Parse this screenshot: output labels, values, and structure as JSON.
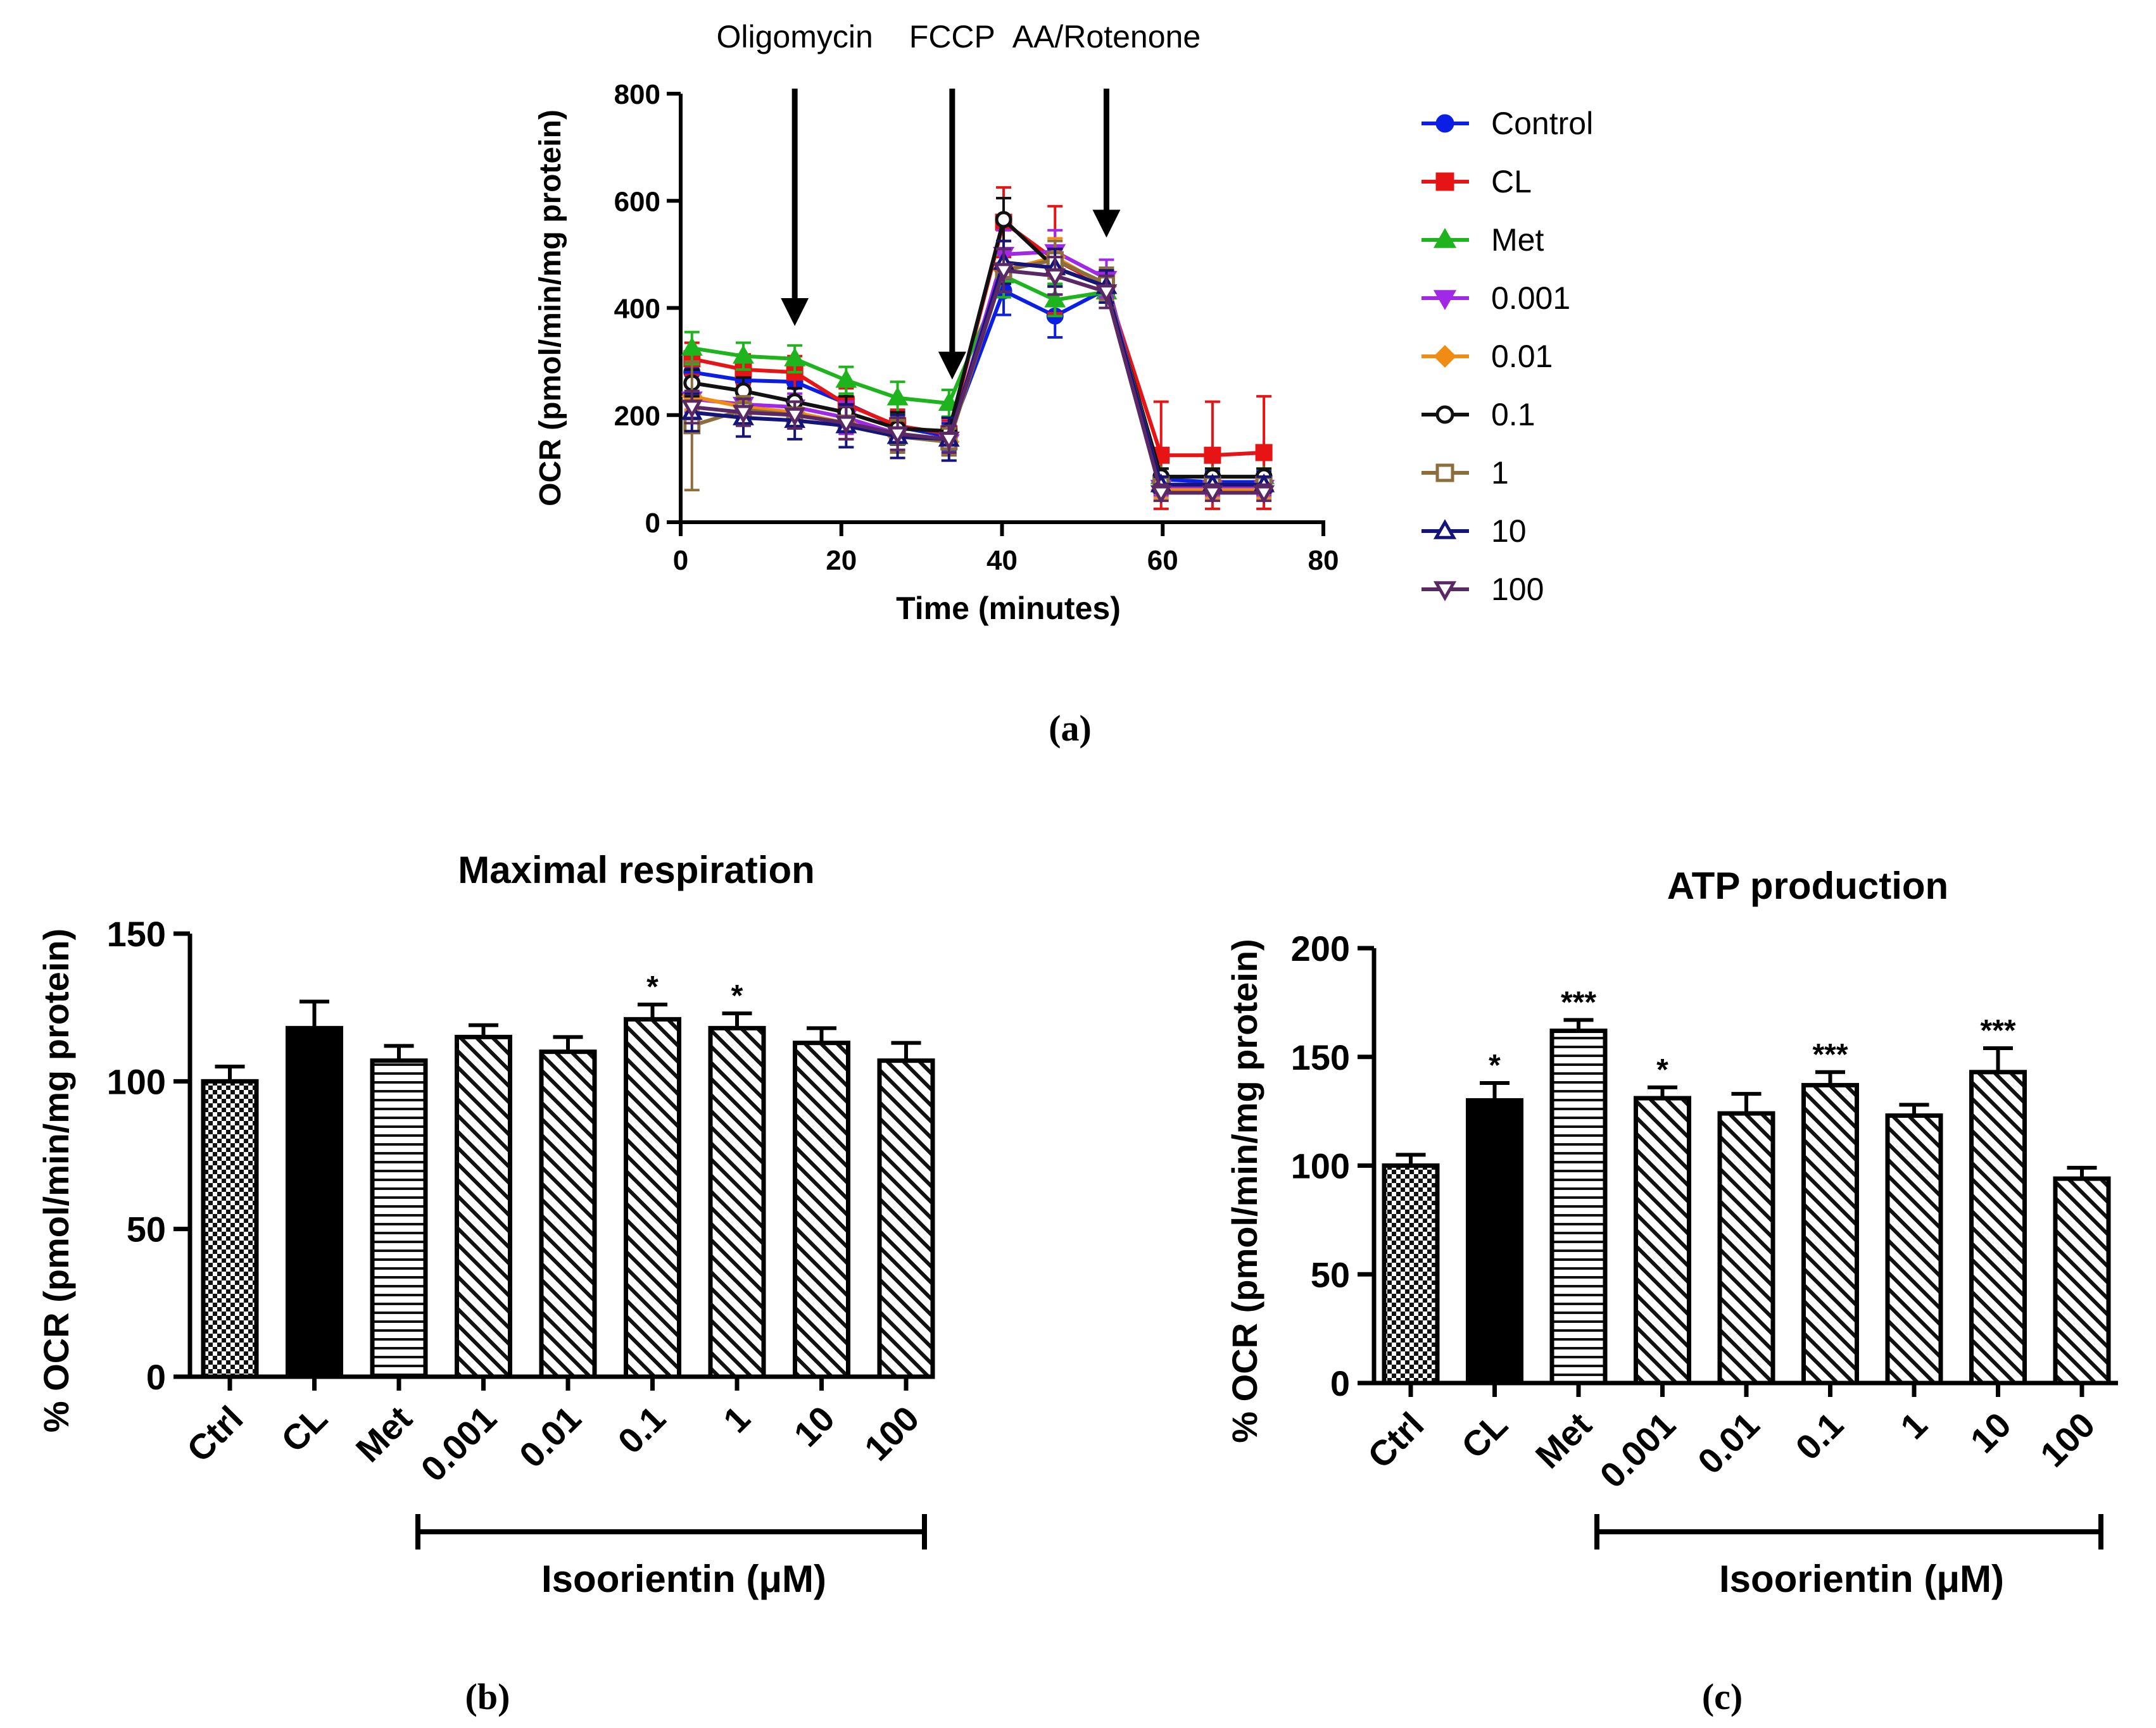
{
  "panel_labels": {
    "a": "(a)",
    "b": "(b)",
    "c": "(c)"
  },
  "chart_data": [
    {
      "id": "a",
      "type": "line",
      "xlabel": "Time (minutes)",
      "ylabel": "OCR (pmol/min/mg protein)",
      "xlim": [
        0,
        80
      ],
      "ylim": [
        0,
        800
      ],
      "xticks": [
        "0",
        "20",
        "40",
        "60",
        "80"
      ],
      "yticks": [
        "0",
        "200",
        "400",
        "600",
        "800"
      ],
      "x": [
        1.4,
        7.8,
        14.2,
        20.6,
        27.0,
        33.4,
        40.2,
        46.6,
        53.0,
        59.8,
        66.2,
        72.6
      ],
      "annotations": [
        {
          "label": "Oligomycin",
          "x": 14.2,
          "y": 345
        },
        {
          "label": "FCCP",
          "x": 33.8,
          "y": 245
        },
        {
          "label": "AA/Rotenone",
          "x": 53.0,
          "y": 510
        }
      ],
      "series": [
        {
          "name": "Control",
          "color": "#0a1ee6",
          "marker": "circle-filled",
          "values": [
            280,
            265,
            262,
            222,
            178,
            160,
            432,
            385,
            435,
            80,
            75,
            75
          ],
          "errors": [
            25,
            25,
            28,
            30,
            30,
            25,
            45,
            40,
            35,
            20,
            20,
            20
          ]
        },
        {
          "name": "CL",
          "color": "#e61414",
          "marker": "square-filled",
          "values": [
            305,
            285,
            280,
            220,
            180,
            165,
            560,
            490,
            440,
            125,
            125,
            130
          ],
          "errors": [
            30,
            28,
            30,
            30,
            30,
            25,
            65,
            100,
            30,
            100,
            100,
            105
          ]
        },
        {
          "name": "Met",
          "color": "#1eb41e",
          "marker": "triangle-up-filled",
          "values": [
            325,
            310,
            305,
            265,
            232,
            222,
            460,
            415,
            430,
            85,
            85,
            85
          ],
          "errors": [
            30,
            25,
            25,
            25,
            30,
            25,
            40,
            30,
            30,
            15,
            15,
            15
          ]
        },
        {
          "name": "0.001",
          "color": "#a028e6",
          "marker": "triangle-down-filled",
          "values": [
            230,
            220,
            215,
            195,
            165,
            150,
            500,
            505,
            455,
            65,
            65,
            65
          ],
          "errors": [
            25,
            25,
            25,
            30,
            30,
            25,
            45,
            40,
            35,
            15,
            15,
            15
          ]
        },
        {
          "name": "0.01",
          "color": "#f08c14",
          "marker": "diamond-filled",
          "values": [
            235,
            215,
            205,
            185,
            160,
            150,
            470,
            495,
            440,
            60,
            60,
            60
          ],
          "errors": [
            25,
            25,
            25,
            30,
            30,
            25,
            40,
            35,
            30,
            15,
            15,
            15
          ]
        },
        {
          "name": "0.1",
          "color": "#111111",
          "marker": "circle-open",
          "values": [
            260,
            245,
            225,
            205,
            175,
            170,
            565,
            475,
            440,
            85,
            85,
            85
          ],
          "errors": [
            25,
            25,
            25,
            30,
            30,
            25,
            40,
            35,
            30,
            15,
            15,
            15
          ]
        },
        {
          "name": "1",
          "color": "#8c6e3c",
          "marker": "square-open",
          "values": [
            180,
            210,
            200,
            185,
            160,
            150,
            470,
            490,
            445,
            70,
            70,
            70
          ],
          "errors": [
            120,
            25,
            25,
            30,
            30,
            25,
            40,
            35,
            30,
            15,
            15,
            15
          ]
        },
        {
          "name": "10",
          "color": "#14147a",
          "marker": "triangle-up-open",
          "values": [
            205,
            195,
            190,
            180,
            160,
            155,
            485,
            475,
            440,
            70,
            70,
            70
          ],
          "errors": [
            35,
            35,
            35,
            40,
            40,
            40,
            40,
            35,
            30,
            15,
            15,
            15
          ]
        },
        {
          "name": "100",
          "color": "#5a2864",
          "marker": "triangle-down-open",
          "values": [
            215,
            205,
            200,
            185,
            165,
            155,
            470,
            460,
            430,
            55,
            55,
            55
          ],
          "errors": [
            30,
            25,
            25,
            30,
            30,
            25,
            40,
            35,
            30,
            15,
            15,
            15
          ]
        }
      ]
    },
    {
      "id": "b",
      "type": "bar",
      "title": "Maximal respiration",
      "ylabel": "% OCR (pmol/min/mg protein)",
      "ylim": [
        0,
        150
      ],
      "yticks": [
        "0",
        "50",
        "100",
        "150"
      ],
      "categories": [
        "Ctrl",
        "CL",
        "Met",
        "0.001",
        "0.01",
        "0.1",
        "1",
        "10",
        "100"
      ],
      "values": [
        100,
        118,
        107,
        115,
        110,
        121,
        118,
        113,
        107
      ],
      "errors": [
        5,
        9,
        5,
        4,
        5,
        5,
        5,
        5,
        6
      ],
      "patterns": [
        "checker",
        "solid",
        "horizontal",
        "diagonal",
        "diagonal",
        "diagonal",
        "diagonal",
        "diagonal",
        "diagonal"
      ],
      "significance": [
        "",
        "",
        "",
        "",
        "",
        "*",
        "*",
        "",
        ""
      ],
      "bracket_label": "Isoorientin (μM)"
    },
    {
      "id": "c",
      "type": "bar",
      "title": "ATP production",
      "ylabel": "% OCR (pmol/min/mg protein)",
      "ylim": [
        0,
        200
      ],
      "yticks": [
        "0",
        "50",
        "100",
        "150",
        "200"
      ],
      "categories": [
        "Ctrl",
        "CL",
        "Met",
        "0.001",
        "0.01",
        "0.1",
        "1",
        "10",
        "100"
      ],
      "values": [
        100,
        130,
        162,
        131,
        124,
        137,
        123,
        143,
        94
      ],
      "errors": [
        5,
        8,
        5,
        5,
        9,
        6,
        5,
        11,
        5
      ],
      "patterns": [
        "checker",
        "solid",
        "horizontal",
        "diagonal",
        "diagonal",
        "diagonal",
        "diagonal",
        "diagonal",
        "diagonal"
      ],
      "significance": [
        "",
        "*",
        "***",
        "*",
        "",
        "***",
        "",
        "***",
        ""
      ],
      "bracket_label": "Isoorientin (μM)"
    }
  ]
}
